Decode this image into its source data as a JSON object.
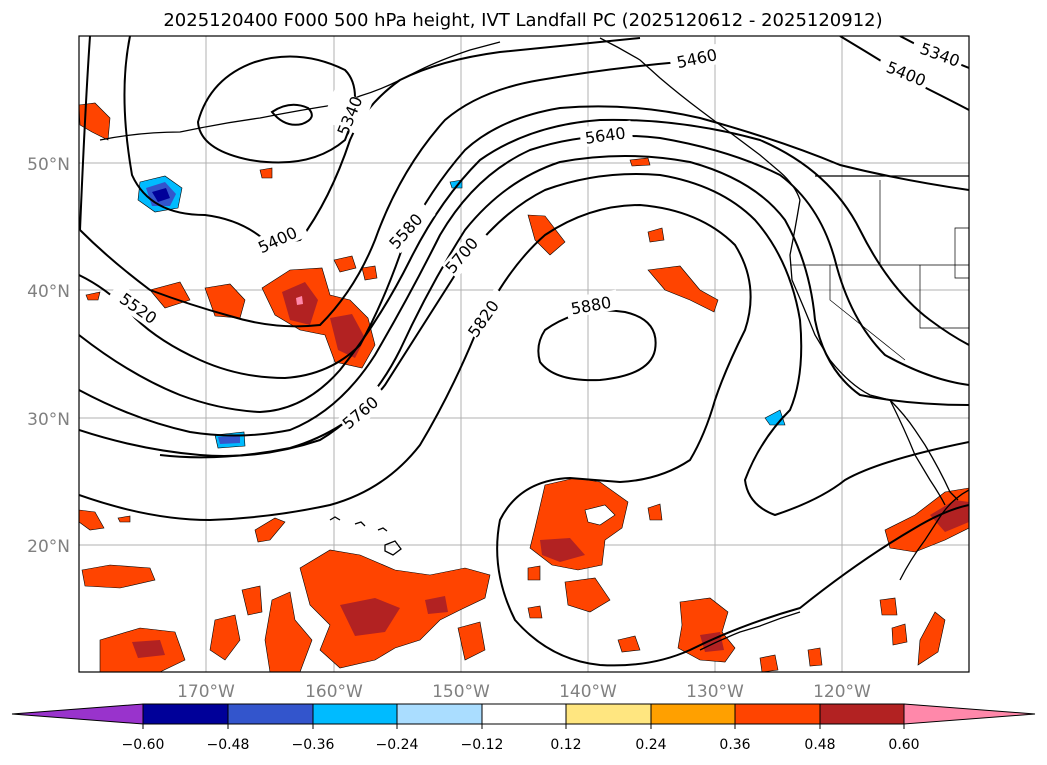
{
  "title": "2025120400 F000 500 hPa height, IVT Landfall PC (2025120612 - 2025120912)",
  "map": {
    "lon_labels": [
      "170°W",
      "160°W",
      "150°W",
      "140°W",
      "130°W",
      "120°W"
    ],
    "lat_labels": [
      "50°N",
      "40°N",
      "30°N",
      "20°N"
    ],
    "contour_labels": [
      "5340",
      "5400",
      "5460",
      "5520",
      "5580",
      "5640",
      "5700",
      "5760",
      "5820",
      "5880",
      "5400",
      "5340"
    ],
    "coast_color": "#000000",
    "grid_color": "#b0b0b0"
  },
  "colorbar": {
    "colors": [
      "#9933cc",
      "#000099",
      "#3355cc",
      "#00bbff",
      "#aaddff",
      "#ffffff",
      "#ffe680",
      "#ffa000",
      "#ff4400",
      "#b22222",
      "#ff88aa"
    ],
    "ticks": [
      "−0.60",
      "−0.48",
      "−0.36",
      "−0.24",
      "−0.12",
      "0.12",
      "0.24",
      "0.36",
      "0.48",
      "0.60"
    ]
  }
}
